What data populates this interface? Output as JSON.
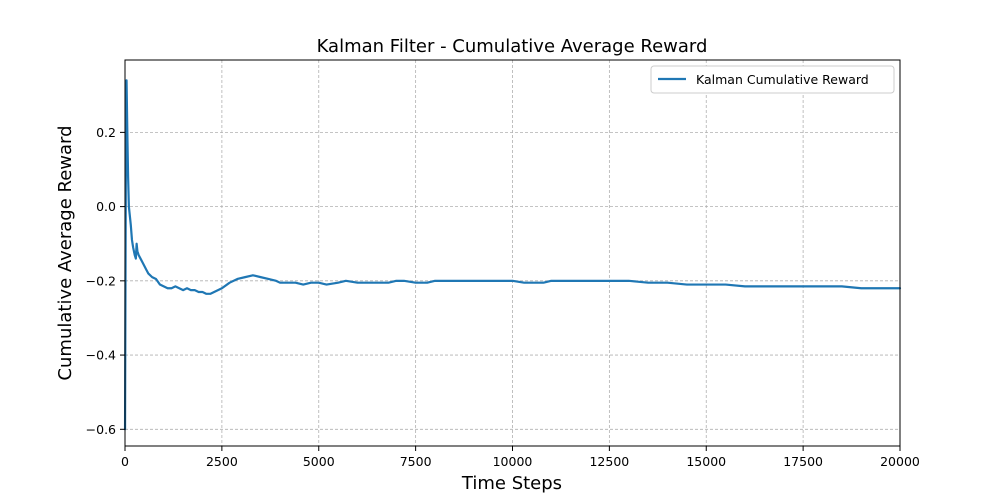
{
  "chart_data": {
    "type": "line",
    "title": "Kalman Filter - Cumulative Average Reward",
    "xlabel": "Time Steps",
    "ylabel": "Cumulative Average Reward",
    "xlim": [
      0,
      20000
    ],
    "ylim": [
      -0.645,
      0.395
    ],
    "xticks": [
      0,
      2500,
      5000,
      7500,
      10000,
      12500,
      15000,
      17500,
      20000
    ],
    "xtick_labels": [
      "0",
      "2500",
      "5000",
      "7500",
      "10000",
      "12500",
      "15000",
      "17500",
      "20000"
    ],
    "yticks": [
      -0.6,
      -0.4,
      -0.2,
      0.0,
      0.2
    ],
    "ytick_labels": [
      "−0.6",
      "−0.4",
      "−0.2",
      "0.0",
      "0.2"
    ],
    "grid": true,
    "legend_position": "top-right",
    "colors": {
      "series": "#1f77b4",
      "grid": "#b0b0b0",
      "axes": "#000000"
    },
    "series": [
      {
        "name": "Kalman Cumulative Reward",
        "color": "#1f77b4",
        "x": [
          1,
          20,
          40,
          60,
          80,
          100,
          120,
          150,
          180,
          210,
          250,
          280,
          300,
          320,
          350,
          400,
          450,
          500,
          550,
          600,
          700,
          800,
          900,
          1000,
          1100,
          1200,
          1300,
          1400,
          1500,
          1600,
          1700,
          1800,
          1900,
          2000,
          2100,
          2200,
          2300,
          2500,
          2700,
          2900,
          3100,
          3300,
          3500,
          3700,
          3900,
          4000,
          4200,
          4400,
          4600,
          4800,
          5000,
          5200,
          5500,
          5700,
          6000,
          6200,
          6500,
          6800,
          7000,
          7200,
          7500,
          7800,
          8000,
          8300,
          8600,
          9000,
          9400,
          9700,
          10000,
          10300,
          10600,
          10800,
          11000,
          11500,
          12000,
          12500,
          13000,
          13500,
          14000,
          14500,
          15000,
          15500,
          16000,
          16500,
          17000,
          17500,
          18000,
          18500,
          19000,
          19500,
          20000
        ],
        "y": [
          -0.6,
          0.05,
          0.34,
          0.2,
          0.08,
          0.0,
          -0.02,
          -0.05,
          -0.09,
          -0.11,
          -0.13,
          -0.14,
          -0.1,
          -0.12,
          -0.13,
          -0.14,
          -0.15,
          -0.16,
          -0.17,
          -0.18,
          -0.19,
          -0.195,
          -0.21,
          -0.215,
          -0.22,
          -0.22,
          -0.215,
          -0.22,
          -0.225,
          -0.22,
          -0.225,
          -0.225,
          -0.23,
          -0.23,
          -0.235,
          -0.235,
          -0.23,
          -0.22,
          -0.205,
          -0.195,
          -0.19,
          -0.185,
          -0.19,
          -0.195,
          -0.2,
          -0.205,
          -0.205,
          -0.205,
          -0.21,
          -0.205,
          -0.205,
          -0.21,
          -0.205,
          -0.2,
          -0.205,
          -0.205,
          -0.205,
          -0.205,
          -0.2,
          -0.2,
          -0.205,
          -0.205,
          -0.2,
          -0.2,
          -0.2,
          -0.2,
          -0.2,
          -0.2,
          -0.2,
          -0.205,
          -0.205,
          -0.205,
          -0.2,
          -0.2,
          -0.2,
          -0.2,
          -0.2,
          -0.205,
          -0.205,
          -0.21,
          -0.21,
          -0.21,
          -0.215,
          -0.215,
          -0.215,
          -0.215,
          -0.215,
          -0.215,
          -0.22,
          -0.22,
          -0.22
        ]
      }
    ]
  }
}
